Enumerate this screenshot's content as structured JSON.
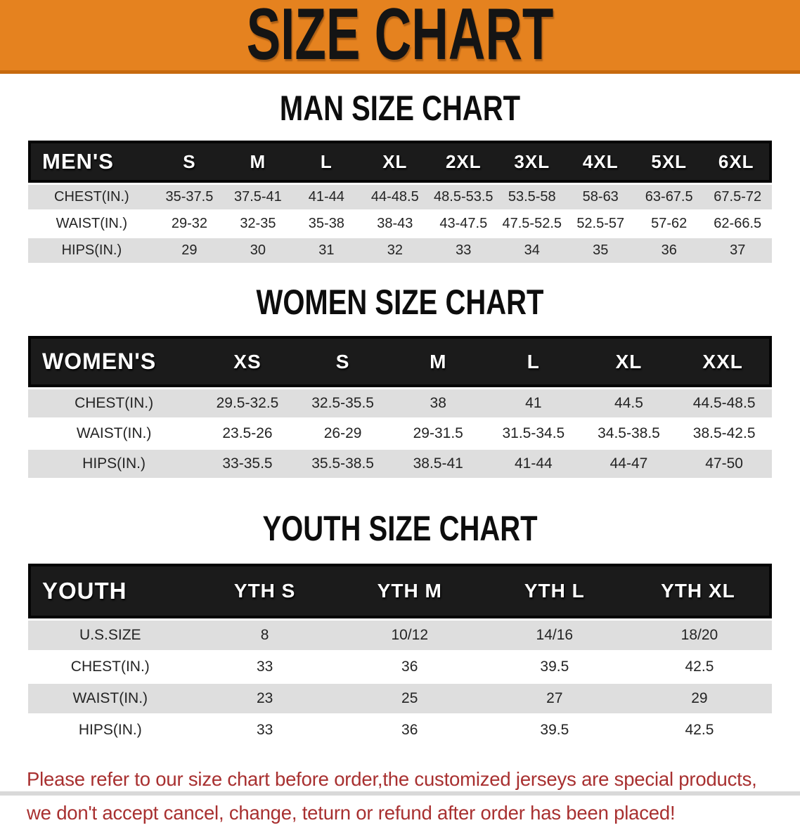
{
  "banner": {
    "title": "SIZE CHART",
    "bg_color": "#E5821F",
    "edge_color": "#C76A0F",
    "title_color": "#141414"
  },
  "sections": [
    {
      "id": "men",
      "heading": "MAN SIZE CHART",
      "table": {
        "label": "MEN'S",
        "columns": [
          "S",
          "M",
          "L",
          "XL",
          "2XL",
          "3XL",
          "4XL",
          "5XL",
          "6XL"
        ],
        "rows": [
          {
            "label": "CHEST(IN.)",
            "stripe": "gray",
            "values": [
              "35-37.5",
              "37.5-41",
              "41-44",
              "44-48.5",
              "48.5-53.5",
              "53.5-58",
              "58-63",
              "63-67.5",
              "67.5-72"
            ]
          },
          {
            "label": "WAIST(IN.)",
            "stripe": "white",
            "values": [
              "29-32",
              "32-35",
              "35-38",
              "38-43",
              "43-47.5",
              "47.5-52.5",
              "52.5-57",
              "57-62",
              "62-66.5"
            ]
          },
          {
            "label": "HIPS(IN.)",
            "stripe": "gray",
            "values": [
              "29",
              "30",
              "31",
              "32",
              "33",
              "34",
              "35",
              "36",
              "37"
            ]
          }
        ]
      }
    },
    {
      "id": "women",
      "heading": "WOMEN SIZE CHART",
      "table": {
        "label": "WOMEN'S",
        "columns": [
          "XS",
          "S",
          "M",
          "L",
          "XL",
          "XXL"
        ],
        "rows": [
          {
            "label": "CHEST(IN.)",
            "stripe": "gray",
            "values": [
              "29.5-32.5",
              "32.5-35.5",
              "38",
              "41",
              "44.5",
              "44.5-48.5"
            ]
          },
          {
            "label": "WAIST(IN.)",
            "stripe": "white",
            "values": [
              "23.5-26",
              "26-29",
              "29-31.5",
              "31.5-34.5",
              "34.5-38.5",
              "38.5-42.5"
            ]
          },
          {
            "label": "HIPS(IN.)",
            "stripe": "gray",
            "values": [
              "33-35.5",
              "35.5-38.5",
              "38.5-41",
              "41-44",
              "44-47",
              "47-50"
            ]
          }
        ]
      }
    },
    {
      "id": "youth",
      "heading": "YOUTH SIZE CHART",
      "table": {
        "label": "YOUTH",
        "columns": [
          "YTH S",
          "YTH M",
          "YTH L",
          "YTH XL"
        ],
        "rows": [
          {
            "label": "U.S.SIZE",
            "stripe": "gray",
            "values": [
              "8",
              "10/12",
              "14/16",
              "18/20"
            ]
          },
          {
            "label": "CHEST(IN.)",
            "stripe": "white",
            "values": [
              "33",
              "36",
              "39.5",
              "42.5"
            ]
          },
          {
            "label": "WAIST(IN.)",
            "stripe": "gray",
            "values": [
              "23",
              "25",
              "27",
              "29"
            ]
          },
          {
            "label": "HIPS(IN.)",
            "stripe": "white",
            "values": [
              "33",
              "36",
              "39.5",
              "42.5"
            ]
          }
        ]
      }
    }
  ],
  "footer": {
    "line1": "Please refer to our size chart before order,the customized jerseys are special products,",
    "line2": "we don't accept cancel, change, teturn or refund after order has been placed!",
    "text_color": "#A83030"
  },
  "colors": {
    "header_band": "#1B1B1B",
    "header_text": "#FFFFFF",
    "row_gray": "#DEDEDE",
    "row_white": "#FFFFFF",
    "body_text": "#242424"
  }
}
